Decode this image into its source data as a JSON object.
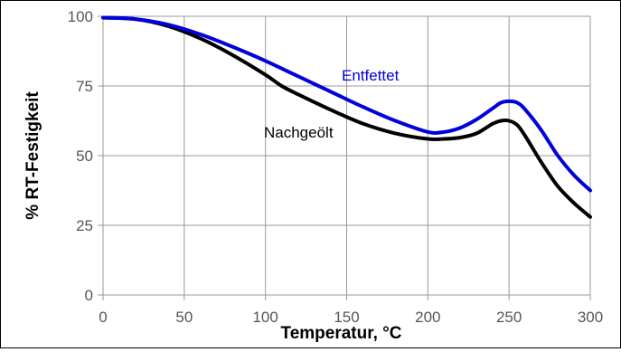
{
  "chart_data": {
    "type": "line",
    "title": "",
    "xlabel": "Temperatur, °C",
    "ylabel": "% RT-Festigkeit",
    "xlim": [
      0,
      300
    ],
    "ylim": [
      0,
      100
    ],
    "x_ticks": [
      "0",
      "50",
      "100",
      "150",
      "200",
      "250",
      "300"
    ],
    "y_ticks": [
      "0",
      "25",
      "50",
      "75",
      "100"
    ],
    "grid": true,
    "legend": "none",
    "series": [
      {
        "name": "Entfettet",
        "color": "#0000dd",
        "x": [
          0,
          20,
          40,
          60,
          80,
          100,
          120,
          140,
          160,
          180,
          200,
          210,
          220,
          230,
          240,
          245,
          250,
          255,
          260,
          270,
          280,
          290,
          300
        ],
        "y": [
          99.5,
          99,
          97,
          93.5,
          89,
          84,
          78.5,
          73,
          67.5,
          62.5,
          58.5,
          58.5,
          60,
          63,
          67,
          69,
          69.5,
          69,
          66.5,
          59,
          50,
          43,
          37.5
        ]
      },
      {
        "name": "Nachgeölt",
        "color": "#000000",
        "x": [
          0,
          20,
          40,
          60,
          80,
          100,
          110,
          120,
          140,
          160,
          180,
          200,
          210,
          220,
          230,
          240,
          245,
          250,
          255,
          260,
          270,
          280,
          290,
          300
        ],
        "y": [
          99.5,
          99,
          96.5,
          92,
          86,
          79,
          75,
          72,
          66.5,
          61.5,
          58,
          56,
          56,
          56.5,
          58,
          61.5,
          62.5,
          62.5,
          61,
          57,
          47.5,
          39,
          33,
          28
        ]
      }
    ]
  }
}
